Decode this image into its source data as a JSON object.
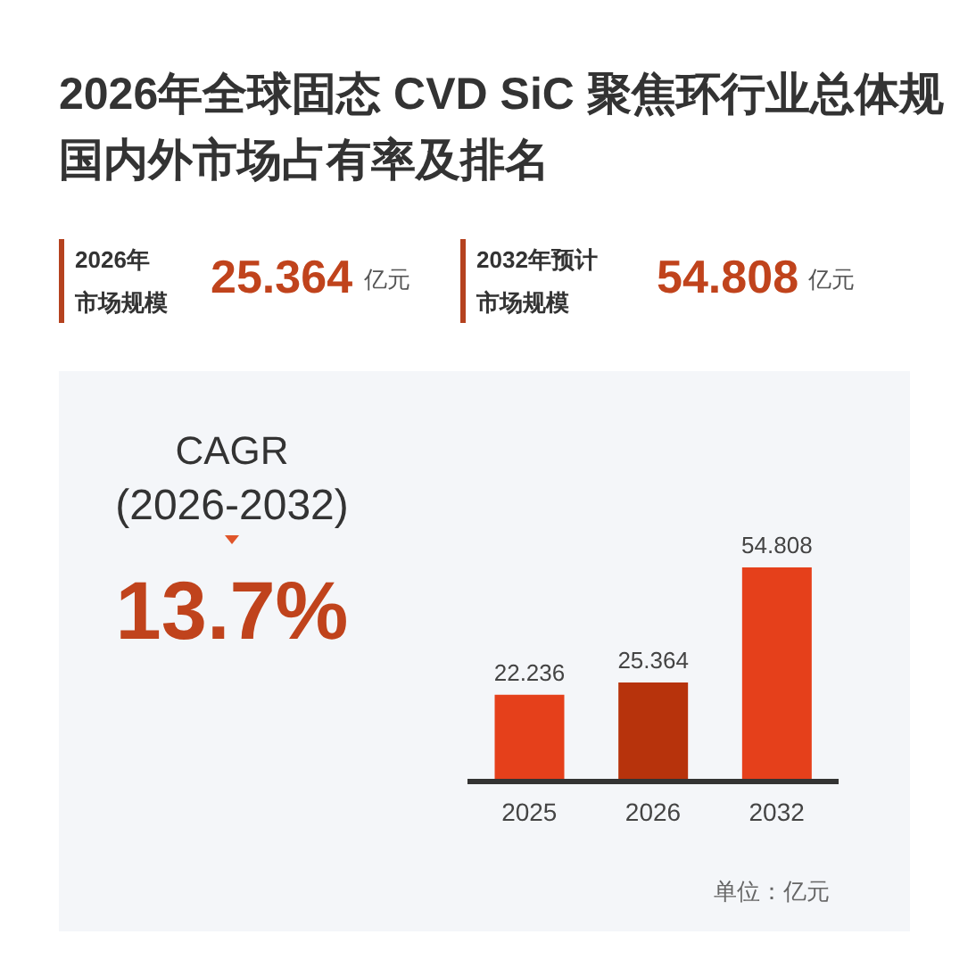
{
  "chart_data": {
    "type": "bar",
    "title": "2026年全球固态 CVD SiC 聚焦环行业总体规国内外市场占有率及排名",
    "categories": [
      "2025",
      "2026",
      "2032"
    ],
    "values": [
      22.236,
      25.364,
      54.808
    ],
    "colors": [
      "#e5401b",
      "#b7330c",
      "#e5401b"
    ],
    "data_labels": true,
    "annotations": [
      "2026年",
      "市场规模",
      "25.364",
      "亿元",
      "2032年预计",
      "市场规模",
      "54.808",
      "亿元",
      "CAGR",
      "(2026-2032)",
      "13.7%",
      "单位：亿元"
    ]
  }
}
